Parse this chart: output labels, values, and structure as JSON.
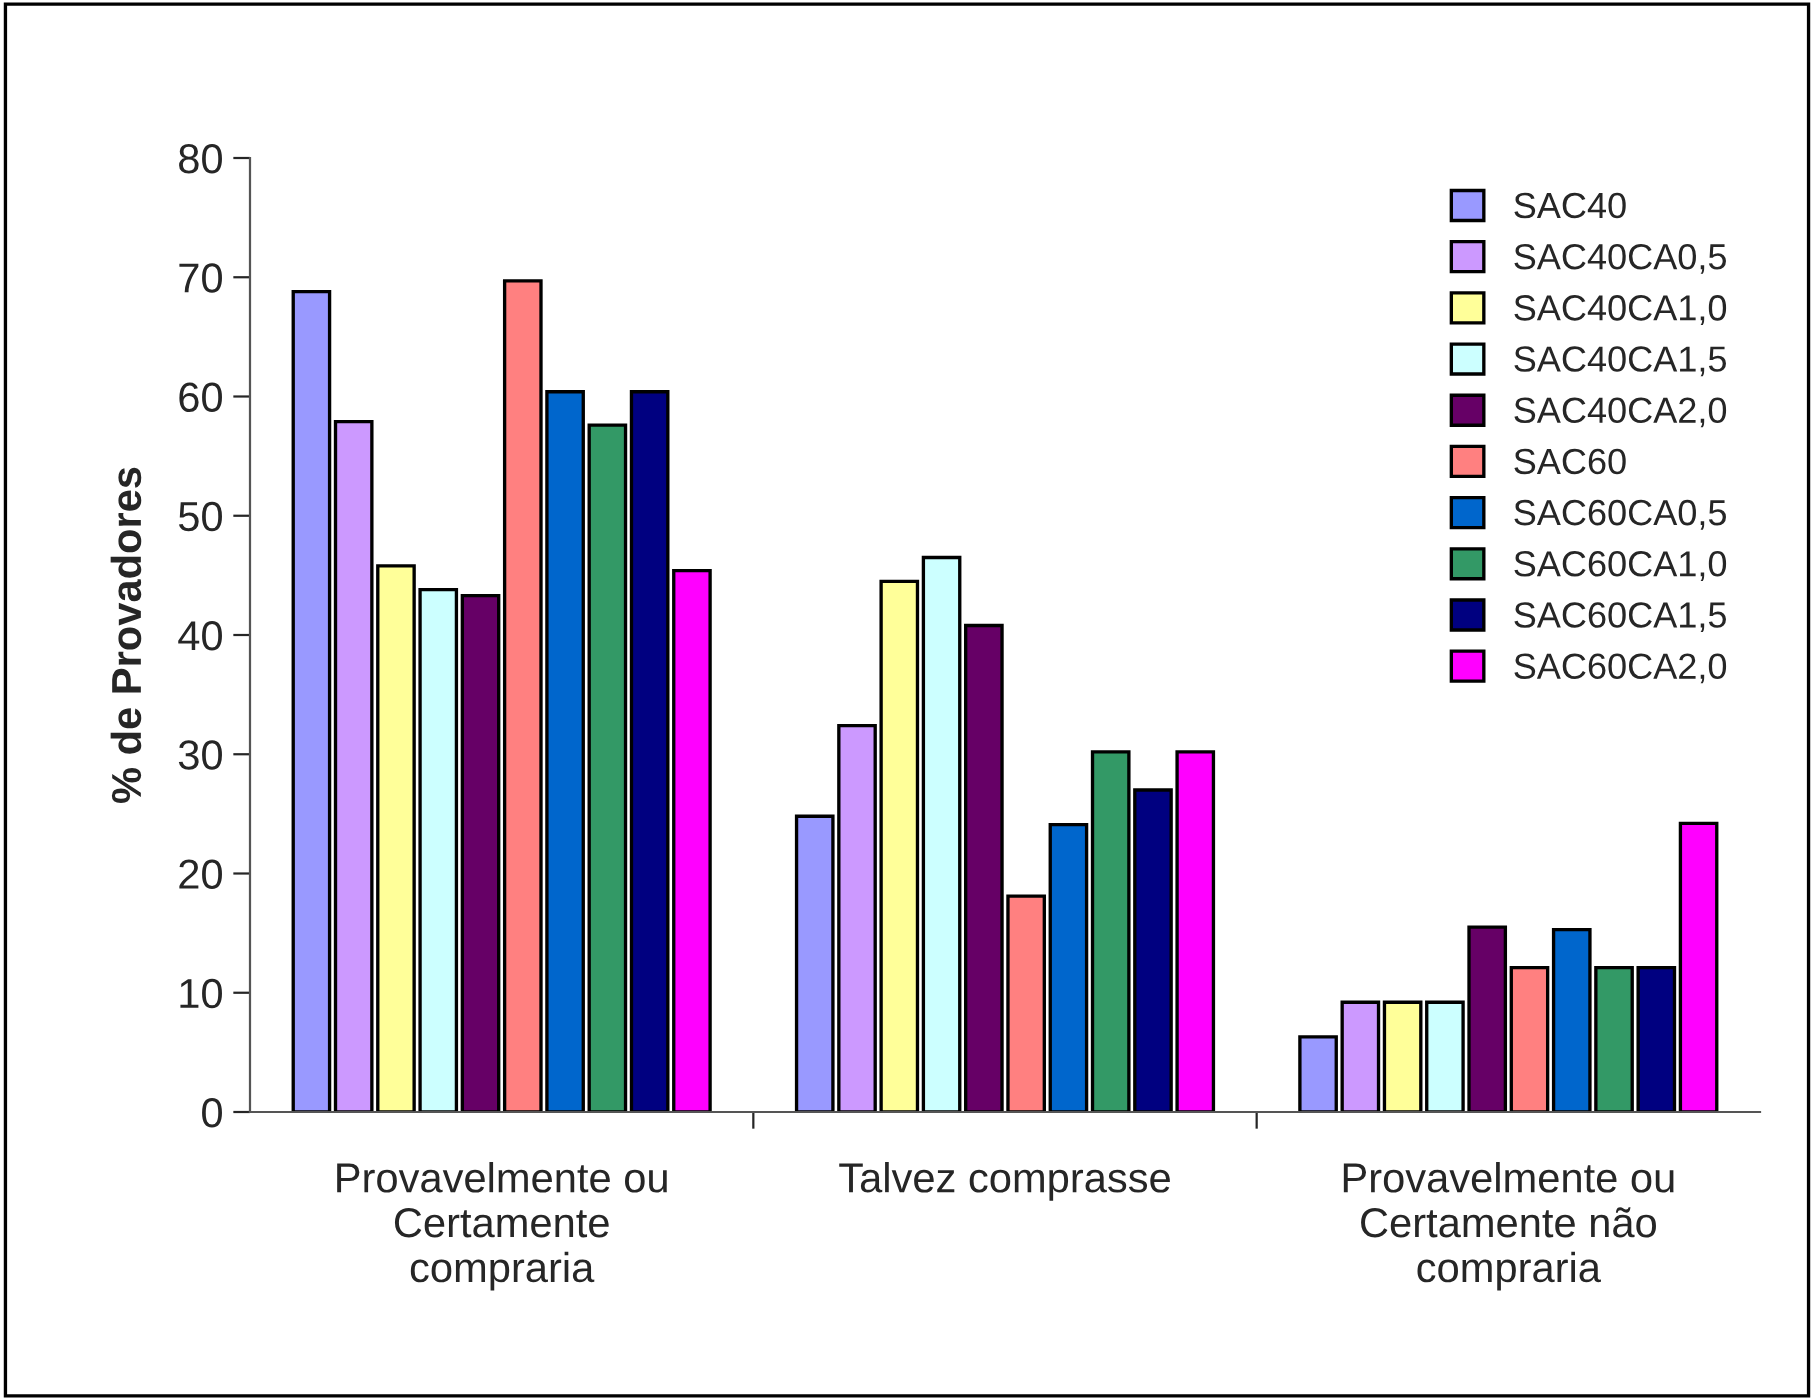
{
  "chart_data": {
    "type": "bar",
    "ylabel": "% de Provadores",
    "categories": [
      "Provavelmente ou\nCertamente\ncompraria",
      "Talvez comprasse",
      "Provavelmente ou\nCertamente não\ncompraria"
    ],
    "series": [
      {
        "name": "SAC40",
        "color": "#9999ff",
        "values": [
          68.8,
          24.8,
          6.3
        ]
      },
      {
        "name": "SAC40CA0,5",
        "color": "#cc99ff",
        "values": [
          57.9,
          32.4,
          9.2
        ]
      },
      {
        "name": "SAC40CA1,0",
        "color": "#ffff99",
        "values": [
          45.8,
          44.5,
          9.2
        ]
      },
      {
        "name": "SAC40CA1,5",
        "color": "#ccffff",
        "values": [
          43.8,
          46.5,
          9.2
        ]
      },
      {
        "name": "SAC40CA2,0",
        "color": "#660066",
        "values": [
          43.3,
          40.8,
          15.5
        ]
      },
      {
        "name": "SAC60",
        "color": "#ff8080",
        "values": [
          69.7,
          18.1,
          12.1
        ]
      },
      {
        "name": "SAC60CA0,5",
        "color": "#0066cc",
        "values": [
          60.4,
          24.1,
          15.3
        ]
      },
      {
        "name": "SAC60CA1,0",
        "color": "#339966",
        "values": [
          57.6,
          30.2,
          12.1
        ]
      },
      {
        "name": "SAC60CA1,5",
        "color": "#000080",
        "values": [
          60.4,
          27.0,
          12.1
        ]
      },
      {
        "name": "SAC60CA2,0",
        "color": "#ff00ff",
        "values": [
          45.4,
          30.2,
          24.2
        ]
      }
    ],
    "ylim": [
      0,
      80
    ],
    "yticks": [
      0,
      10,
      20,
      30,
      40,
      50,
      60,
      70,
      80
    ],
    "grid": false,
    "legend": "top right"
  }
}
